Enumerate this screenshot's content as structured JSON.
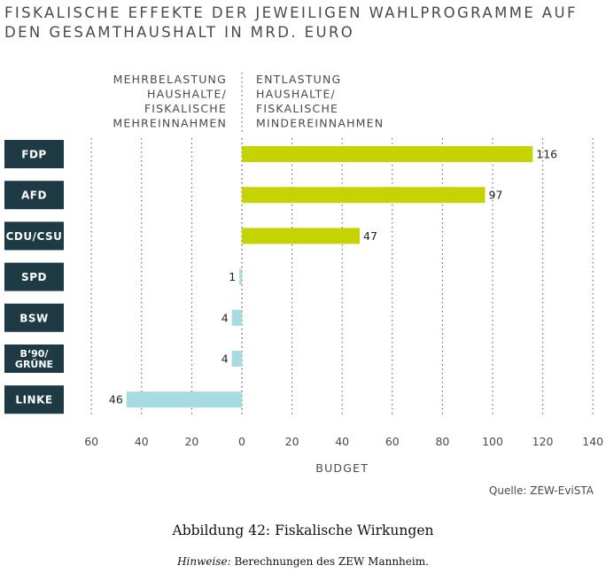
{
  "title_lines": [
    "FISKALISCHE EFFEKTE DER JEWEILIGEN WAHLPROGRAMME AUF",
    "DEN GESAMTHAUSHALT IN MRD. EURO"
  ],
  "left_header": [
    "MEHRBELASTUNG",
    "HAUSHALTE/",
    "FISKALISCHE",
    "MEHREINNAHMEN"
  ],
  "right_header": [
    "ENTLASTUNG",
    "HAUSHALTE/",
    "FISKALISCHE",
    "MINDEREINNAHMEN"
  ],
  "colors": {
    "positive_bar": "#c5d400",
    "negative_bar": "#a8dae2",
    "label_box": "#1e3a44",
    "label_text": "#ffffff",
    "grid": "#555555",
    "text": "#4a4a4a"
  },
  "source": "Quelle: ZEW-EviSTA",
  "caption": "Abbildung 42: Fiskalische Wirkungen",
  "note_label": "Hinweise:",
  "note_text": "Berechnungen des ZEW Mannheim.",
  "chart_data": {
    "type": "bar",
    "orientation": "horizontal",
    "categories": [
      "FDP",
      "AFD",
      "CDU/CSU",
      "SPD",
      "BSW",
      "B‘90/ GRÜNE",
      "LINKE"
    ],
    "values": [
      116,
      97,
      47,
      -1,
      -4,
      -4,
      -46
    ],
    "value_labels": [
      "116",
      "97",
      "47",
      "1",
      "4",
      "4",
      "46"
    ],
    "xlabel": "BUDGET",
    "xlim": [
      -60,
      140
    ],
    "xticks": [
      -60,
      -40,
      -20,
      0,
      20,
      40,
      60,
      80,
      100,
      120,
      140
    ],
    "xtick_labels": [
      "60",
      "40",
      "20",
      "0",
      "20",
      "40",
      "60",
      "80",
      "100",
      "120",
      "140"
    ],
    "grid": "vertical-dotted"
  }
}
